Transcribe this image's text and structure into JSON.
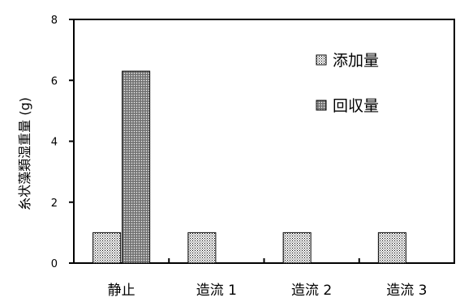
{
  "chart_data": {
    "type": "bar",
    "title": "",
    "xlabel": "",
    "ylabel": "糸状藻類湿重量 (g)",
    "ylim": [
      0,
      8
    ],
    "yticks": [
      0,
      2,
      4,
      6,
      8
    ],
    "categories": [
      "静止",
      "造流 1",
      "造流 2",
      "造流 3"
    ],
    "series": [
      {
        "name": "添加量",
        "values": [
          1.0,
          1.0,
          1.0,
          1.0
        ],
        "pattern": "dotted"
      },
      {
        "name": "回収量",
        "values": [
          6.3,
          0,
          0,
          0
        ],
        "pattern": "crosshatch"
      }
    ],
    "legend": {
      "placement": "top-right"
    },
    "grid": false
  }
}
